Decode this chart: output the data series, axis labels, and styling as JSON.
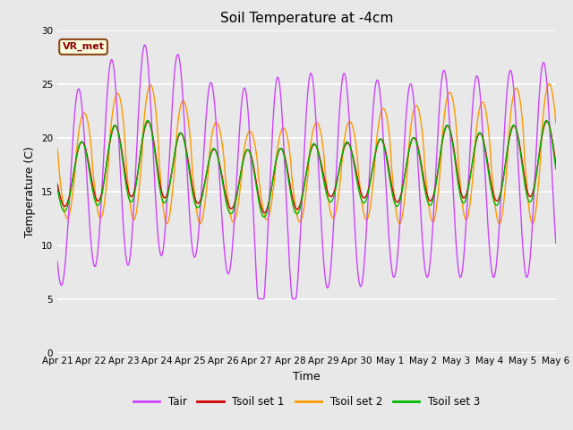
{
  "title": "Soil Temperature at -4cm",
  "xlabel": "Time",
  "ylabel": "Temperature (C)",
  "ylim": [
    0,
    30
  ],
  "yticks": [
    0,
    5,
    10,
    15,
    20,
    25,
    30
  ],
  "colors": {
    "Tair": "#CC44FF",
    "Tsoil_set1": "#CC0000",
    "Tsoil_set2": "#FF9900",
    "Tsoil_set3": "#00BB00"
  },
  "xtick_labels": [
    "Apr 21",
    "Apr 22",
    "Apr 23",
    "Apr 24",
    "Apr 25",
    "Apr 26",
    "Apr 27",
    "Apr 28",
    "Apr 29",
    "Apr 30",
    "May 1",
    "May 2",
    "May 3",
    "May 4",
    "May 5",
    "May 6"
  ],
  "legend_labels": [
    "Tair",
    "Tsoil set 1",
    "Tsoil set 2",
    "Tsoil set 3"
  ],
  "annotation_text": "VR_met",
  "bg_color": "#E8E8E8",
  "grid_color": "#FFFFFF",
  "n_days": 15,
  "n_points": 720
}
